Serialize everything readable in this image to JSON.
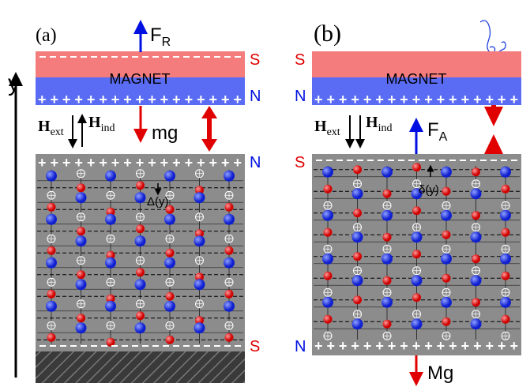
{
  "axis_label": "y",
  "panel_a": {
    "label": "(a)",
    "magnet": "MAGNET",
    "pole_top": "S",
    "pole_bottom": "N",
    "plus_row": "+++++++++++++++++",
    "force": {
      "symbol": "F",
      "sub": "R"
    },
    "weight": "mg",
    "h_ext": {
      "symbol": "H",
      "sub": "ext"
    },
    "h_ind": {
      "symbol": "H",
      "sub": "ind"
    },
    "block_top": "N",
    "block_bottom": "S",
    "shift": "Δ(y)"
  },
  "panel_b": {
    "label": "(b)",
    "magnet": "MAGNET",
    "pole_top": "S",
    "pole_bottom": "N",
    "plus_row": "+++++++++++++++++",
    "force": {
      "symbol": "F",
      "sub": "A"
    },
    "weight": "Mg",
    "h_ext": {
      "symbol": "H",
      "sub": "ext"
    },
    "h_ind": {
      "symbol": "H",
      "sub": "ind"
    },
    "block_top": "S",
    "block_bottom": "N",
    "shift": "δ(y)"
  }
}
